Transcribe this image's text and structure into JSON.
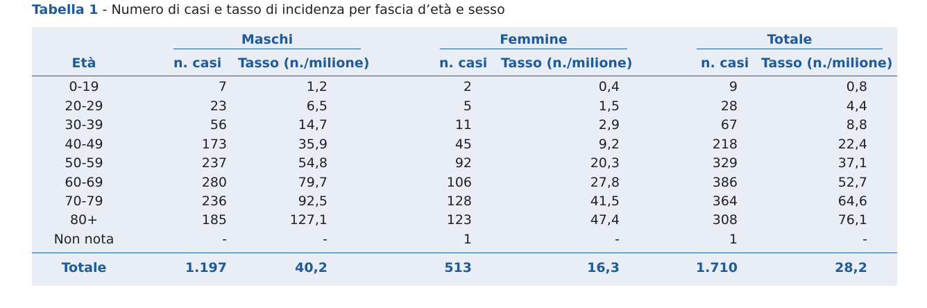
{
  "title": {
    "label": "Tabella 1",
    "text": " - Numero di casi e tasso di incidenza per fascia d’età e sesso"
  },
  "groups": {
    "male": "Maschi",
    "female": "Femmine",
    "total": "Totale"
  },
  "columns": {
    "age": "Età",
    "cases": "n. casi",
    "rate": "Tasso (n./milione)"
  },
  "rows": [
    {
      "age": "0-19",
      "m_n": "7",
      "m_t": "1,2",
      "f_n": "2",
      "f_t": "0,4",
      "t_n": "9",
      "t_t": "0,8"
    },
    {
      "age": "20-29",
      "m_n": "23",
      "m_t": "6,5",
      "f_n": "5",
      "f_t": "1,5",
      "t_n": "28",
      "t_t": "4,4"
    },
    {
      "age": "30-39",
      "m_n": "56",
      "m_t": "14,7",
      "f_n": "11",
      "f_t": "2,9",
      "t_n": "67",
      "t_t": "8,8"
    },
    {
      "age": "40-49",
      "m_n": "173",
      "m_t": "35,9",
      "f_n": "45",
      "f_t": "9,2",
      "t_n": "218",
      "t_t": "22,4"
    },
    {
      "age": "50-59",
      "m_n": "237",
      "m_t": "54,8",
      "f_n": "92",
      "f_t": "20,3",
      "t_n": "329",
      "t_t": "37,1"
    },
    {
      "age": "60-69",
      "m_n": "280",
      "m_t": "79,7",
      "f_n": "106",
      "f_t": "27,8",
      "t_n": "386",
      "t_t": "52,7"
    },
    {
      "age": "70-79",
      "m_n": "236",
      "m_t": "92,5",
      "f_n": "128",
      "f_t": "41,5",
      "t_n": "364",
      "t_t": "64,6"
    },
    {
      "age": "80+",
      "m_n": "185",
      "m_t": "127,1",
      "f_n": "123",
      "f_t": "47,4",
      "t_n": "308",
      "t_t": "76,1"
    },
    {
      "age": "Non nota",
      "m_n": "-",
      "m_t": "-",
      "f_n": "1",
      "f_t": "-",
      "t_n": "1",
      "t_t": "-"
    }
  ],
  "total": {
    "age": "Totale",
    "m_n": "1.197",
    "m_t": "40,2",
    "f_n": "513",
    "f_t": "16,3",
    "t_n": "1.710",
    "t_t": "28,2"
  },
  "colors": {
    "accent": "#1f5b98",
    "panel": "#e8edf6",
    "text": "#231f20"
  }
}
